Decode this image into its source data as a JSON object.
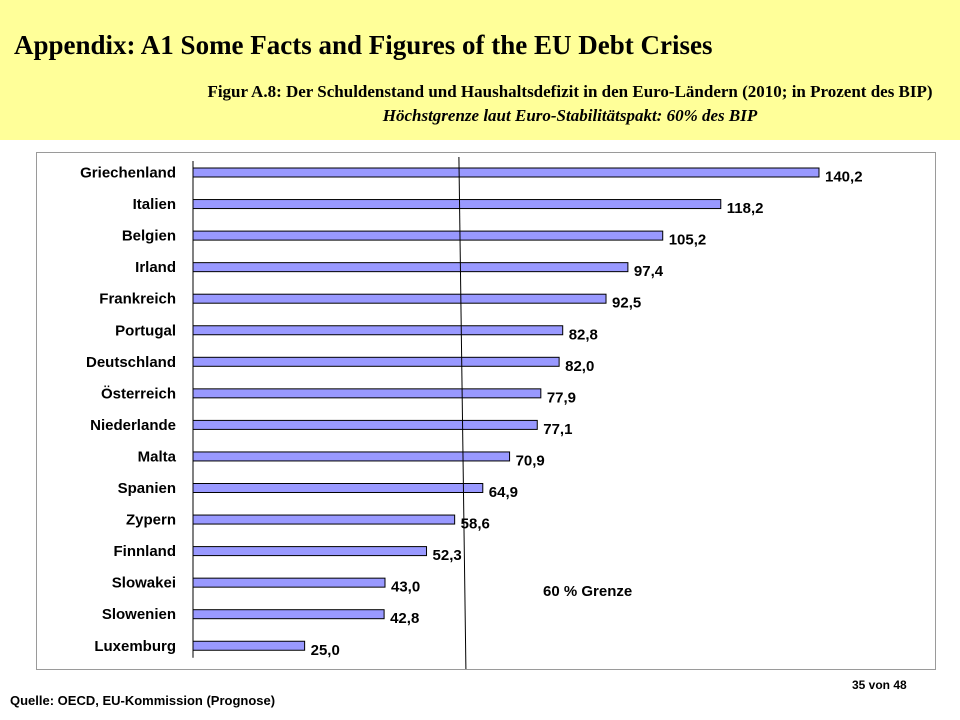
{
  "header": {
    "title": "Appendix: A1 Some Facts and Figures of the EU Debt Crises",
    "caption": "Figur A.8: Der Schuldenstand und Haushaltsdefizit in den Euro-Ländern (2010; in Prozent des BIP) ",
    "caption_note": "Höchstgrenze laut Euro-Stabilitätspakt: 60% des BIP"
  },
  "chart_data": {
    "type": "bar",
    "orientation": "horizontal",
    "categories": [
      "Griechenland",
      "Italien",
      "Belgien",
      "Irland",
      "Frankreich",
      "Portugal",
      "Deutschland",
      "Österreich",
      "Niederlande",
      "Malta",
      "Spanien",
      "Zypern",
      "Finnland",
      "Slowakei",
      "Slowenien",
      "Luxemburg"
    ],
    "values": [
      140.2,
      118.2,
      105.2,
      97.4,
      92.5,
      82.8,
      82.0,
      77.9,
      77.1,
      70.9,
      64.9,
      58.6,
      52.3,
      43.0,
      42.8,
      25.0
    ],
    "value_labels": [
      "140,2",
      "118,2",
      "105,2",
      "97,4",
      "92,5",
      "82,8",
      "82,0",
      "77,9",
      "77,1",
      "70,9",
      "64,9",
      "58,6",
      "52,3",
      "43,0",
      "42,8",
      "25,0"
    ],
    "reference_line": {
      "value": 60,
      "label": "60 % Grenze"
    },
    "bar_color": "#9999ff",
    "xlim": [
      0,
      140.2
    ],
    "grid": false,
    "legend": "none"
  },
  "footer": {
    "source": "Quelle: OECD, EU-Kommission (Prognose)",
    "page": "35 von 48"
  }
}
